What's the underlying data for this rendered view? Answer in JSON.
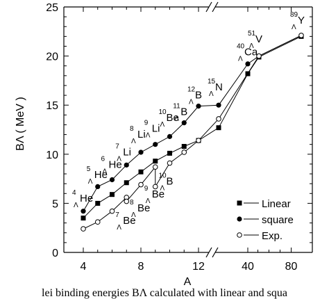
{
  "caption": "lei binding energies BΛ calculated with linear and squa",
  "chart_data": {
    "type": "scatter",
    "xlabel": "A",
    "ylabel": "BΛ ( MeV )",
    "ylim": [
      0,
      25
    ],
    "yticks": [
      0,
      5,
      10,
      15,
      20,
      25
    ],
    "xticks": [
      "4",
      "8",
      "12",
      "40",
      "80"
    ],
    "axis_break": "x between 12 and 40",
    "legend_position": "bottom-right",
    "series": [
      {
        "name": "Linear",
        "marker": "filled-square",
        "points": [
          {
            "A": 4,
            "B": 3.5
          },
          {
            "A": 5,
            "B": 5.0
          },
          {
            "A": 6,
            "B": 5.9
          },
          {
            "A": 7,
            "B": 7.1
          },
          {
            "A": 8,
            "B": 8.2
          },
          {
            "A": 9,
            "B": 9.3
          },
          {
            "A": 10,
            "B": 10.1
          },
          {
            "A": 11,
            "B": 10.8
          },
          {
            "A": 12,
            "B": 11.4
          },
          {
            "A": 13,
            "B": 12.7
          },
          {
            "A": 40,
            "B": 18.2
          },
          {
            "A": 51,
            "B": 19.9
          },
          {
            "A": 89,
            "B": 22.0
          }
        ]
      },
      {
        "name": "square",
        "marker": "filled-circle",
        "points": [
          {
            "A": 4,
            "B": 4.2
          },
          {
            "A": 5,
            "B": 6.7
          },
          {
            "A": 6,
            "B": 7.4
          },
          {
            "A": 7,
            "B": 8.9
          },
          {
            "A": 8,
            "B": 10.2
          },
          {
            "A": 9,
            "B": 11.0
          },
          {
            "A": 10,
            "B": 11.8
          },
          {
            "A": 11,
            "B": 13.2
          },
          {
            "A": 12,
            "B": 14.9
          },
          {
            "A": 13,
            "B": 15.0
          },
          {
            "A": 40,
            "B": 19.2
          },
          {
            "A": 51,
            "B": 20.0
          },
          {
            "A": 89,
            "B": 22.1
          }
        ]
      },
      {
        "name": "Exp.",
        "marker": "open-circle",
        "points": [
          {
            "A": 4,
            "B": 2.4
          },
          {
            "A": 5,
            "B": 3.1
          },
          {
            "A": 6,
            "B": 4.2
          },
          {
            "A": 7,
            "B": 5.6
          },
          {
            "A": 7,
            "B": 5.2
          },
          {
            "A": 8,
            "B": 6.9
          },
          {
            "A": 9,
            "B": 8.7
          },
          {
            "A": 9,
            "B": 6.7
          },
          {
            "A": 10,
            "B": 9.1
          },
          {
            "A": 11,
            "B": 10.2
          },
          {
            "A": 12,
            "B": 11.4
          },
          {
            "A": 13,
            "B": 13.6
          },
          {
            "A": 51,
            "B": 20.0
          },
          {
            "A": 89,
            "B": 22.1
          }
        ]
      }
    ],
    "annotations": [
      {
        "mass": "4",
        "sym": "He",
        "A": 4,
        "B": 5.4
      },
      {
        "mass": "5",
        "sym": "He",
        "A": 5,
        "B": 7.8
      },
      {
        "mass": "6",
        "sym": "He",
        "A": 6,
        "B": 8.8
      },
      {
        "mass": "7",
        "sym": "Li",
        "A": 7,
        "B": 10.1
      },
      {
        "mass": "8",
        "sym": "Li",
        "A": 8,
        "B": 11.9
      },
      {
        "mass": "9",
        "sym": "Li",
        "A": 9,
        "B": 12.5
      },
      {
        "mass": "10",
        "sym": "Be",
        "A": 10,
        "B": 13.6
      },
      {
        "mass": "11",
        "sym": "B",
        "A": 11,
        "B": 14.2
      },
      {
        "mass": "12",
        "sym": "B",
        "A": 12,
        "B": 15.9
      },
      {
        "mass": "15",
        "sym": "N",
        "A": 13,
        "B": 16.7
      },
      {
        "mass": "40",
        "sym": "Ca",
        "A": 40,
        "B": 20.3
      },
      {
        "mass": "51",
        "sym": "V",
        "A": 51,
        "B": 21.6
      },
      {
        "mass": "89",
        "sym": "Y",
        "A": 89,
        "B": 23.5
      },
      {
        "mass": "7",
        "sym": "Be",
        "A": 7,
        "B": 3.1
      },
      {
        "mass": "8",
        "sym": "Be",
        "A": 8,
        "B": 4.4
      },
      {
        "mass": "9",
        "sym": "Be",
        "A": 9,
        "B": 5.8
      },
      {
        "mass": "10",
        "sym": "B",
        "A": 10,
        "B": 7.1
      }
    ]
  }
}
